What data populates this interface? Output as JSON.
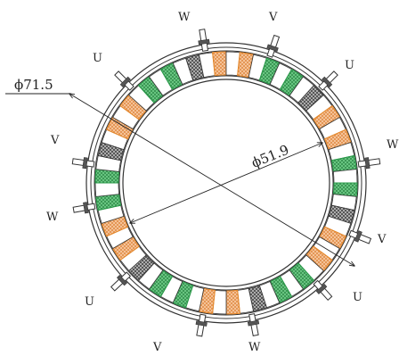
{
  "diagram": {
    "dimensions": {
      "outer": "ϕ71.5",
      "inner": "ϕ51.9"
    },
    "phase_labels": [
      "W",
      "V",
      "U",
      "U",
      "W",
      "V",
      "W",
      "V",
      "U",
      "U",
      "V",
      "W"
    ],
    "colors": {
      "green_coil": "#2a9a4a",
      "orange_coil": "#e8892a",
      "magnet_gray": "#777777",
      "stroke": "#333333"
    },
    "slot_sequence": [
      "magnet",
      "white",
      "orange",
      "white",
      "orange",
      "white",
      "green",
      "white",
      "green",
      "white",
      "magnet",
      "white",
      "orange",
      "white",
      "orange",
      "white",
      "green",
      "white",
      "green",
      "white",
      "magnet",
      "white",
      "orange",
      "white",
      "orange",
      "white",
      "green",
      "white",
      "green",
      "white",
      "magnet",
      "white",
      "orange",
      "white",
      "orange",
      "white",
      "green",
      "white",
      "green",
      "white",
      "magnet",
      "white",
      "orange",
      "white",
      "orange",
      "white",
      "green",
      "white",
      "green",
      "white",
      "magnet",
      "white",
      "orange",
      "white",
      "orange",
      "white",
      "green",
      "white",
      "green",
      "white"
    ]
  }
}
